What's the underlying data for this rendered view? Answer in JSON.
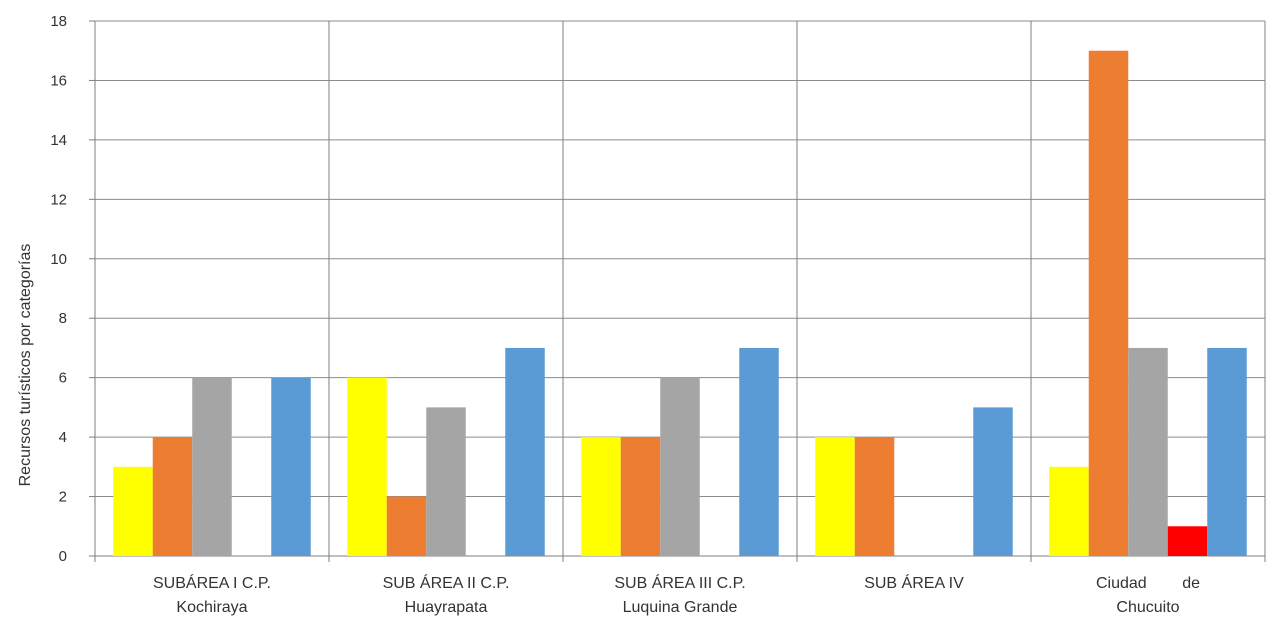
{
  "chart_data": {
    "type": "bar",
    "ylabel": "Recursos turísticos por categorías",
    "ylim": [
      0,
      18
    ],
    "yticks": [
      "0",
      "2",
      "4",
      "6",
      "8",
      "10",
      "12",
      "14",
      "16",
      "18"
    ],
    "grid": true,
    "categories": [
      [
        "SUBÁREA I C.P.",
        "Kochiraya"
      ],
      [
        "SUB ÁREA II C.P.",
        "Huayrapata"
      ],
      [
        "SUB ÁREA III C.P.",
        "Luquina Grande"
      ],
      [
        "SUB ÁREA IV",
        ""
      ],
      [
        "Ciudad        de",
        "Chucuito"
      ]
    ],
    "series": [
      {
        "color": "#ffff00",
        "values": [
          3,
          6,
          4,
          4,
          3
        ]
      },
      {
        "color": "#ed7d31",
        "values": [
          4,
          2,
          4,
          4,
          17
        ]
      },
      {
        "color": "#a5a5a5",
        "values": [
          6,
          5,
          6,
          0,
          7
        ]
      },
      {
        "color": "#ff0000",
        "values": [
          0,
          0,
          0,
          0,
          1
        ]
      },
      {
        "color": "#5b9bd5",
        "values": [
          6,
          7,
          7,
          5,
          7
        ]
      }
    ]
  }
}
